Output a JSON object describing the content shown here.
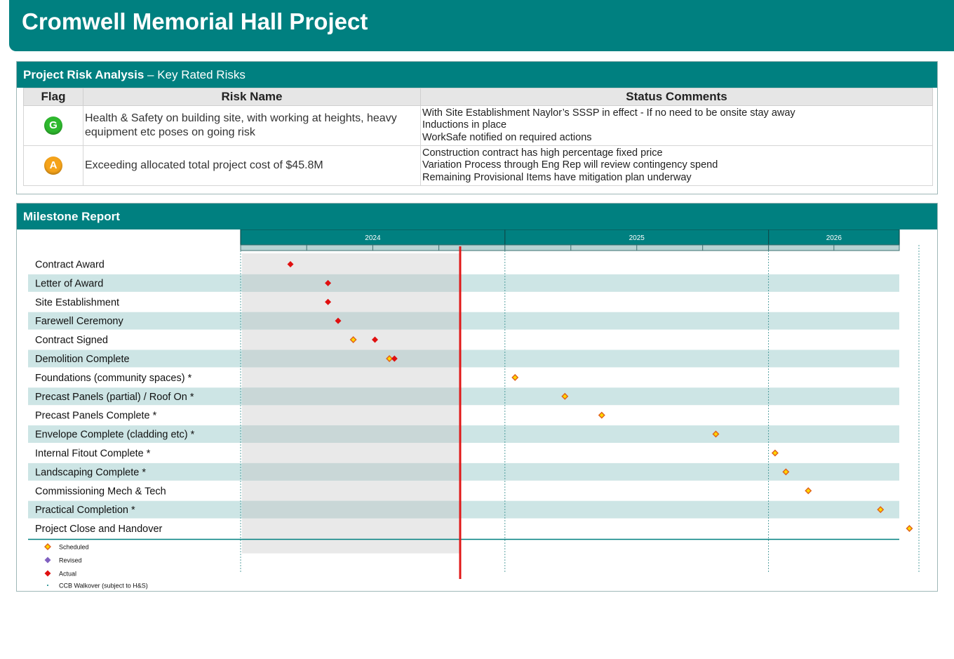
{
  "title": "Cromwell Memorial Hall Project",
  "risk_panel": {
    "title_bold": "Project Risk Analysis",
    "title_rest": " – Key Rated Risks",
    "headers": {
      "flag": "Flag",
      "risk_name": "Risk Name",
      "status": "Status Comments"
    },
    "rows": [
      {
        "flag": "G",
        "flag_color": "#2eb82e",
        "risk_name": "Health & Safety on building site, with working at heights, heavy equipment etc poses on going risk",
        "status": [
          "With Site Establishment Naylor’s SSSP in effect - If no need to be onsite stay away",
          "Inductions in place",
          "WorkSafe notified on required actions"
        ]
      },
      {
        "flag": "A",
        "flag_color": "#f5a31a",
        "risk_name": "Exceeding allocated total project cost of $45.8M",
        "status": [
          "Construction contract has high percentage fixed price",
          "Variation Process through Eng Rep will review contingency spend",
          "Remaining Provisional Items have mitigation plan underway"
        ]
      }
    ]
  },
  "milestone_panel": {
    "title": "Milestone Report"
  },
  "colors": {
    "teal": "#008080",
    "band": "#cde5e5",
    "scheduled": "#f0a020",
    "actual": "#e01010",
    "revised": "#8060c0",
    "today_line": "#e01818"
  },
  "chart_data": {
    "type": "gantt-milestones",
    "years": [
      "2024",
      "2025",
      "2026"
    ],
    "x_range": [
      "2024-01-01",
      "2026-07-01"
    ],
    "today": "2024-10-31",
    "milestones": [
      {
        "name": "Contract Award",
        "actual": "2024-03-10"
      },
      {
        "name": "Letter of Award",
        "actual": "2024-05-01"
      },
      {
        "name": "Site Establishment",
        "actual": "2024-05-01"
      },
      {
        "name": "Farewell Ceremony",
        "actual": "2024-05-15"
      },
      {
        "name": "Contract Signed",
        "scheduled": "2024-06-05",
        "actual": "2024-07-05"
      },
      {
        "name": "Demolition Complete",
        "scheduled": "2024-07-25",
        "actual": "2024-08-01"
      },
      {
        "name": "Foundations (community spaces) *",
        "scheduled": "2025-01-15"
      },
      {
        "name": "Precast Panels (partial) / Roof On *",
        "scheduled": "2025-03-25"
      },
      {
        "name": "Precast Panels Complete *",
        "scheduled": "2025-05-15"
      },
      {
        "name": "Envelope Complete (cladding etc) *",
        "scheduled": "2025-10-20"
      },
      {
        "name": "Internal Fitout Complete *",
        "scheduled": "2026-01-10"
      },
      {
        "name": "Landscaping Complete *",
        "scheduled": "2026-01-25"
      },
      {
        "name": "Commissioning Mech & Tech",
        "scheduled": "2026-02-25"
      },
      {
        "name": "Practical Completion *",
        "scheduled": "2026-06-05"
      },
      {
        "name": "Project Close and Handover",
        "scheduled": "2026-07-15"
      }
    ],
    "legend": [
      "Scheduled",
      "Revised",
      "Actual",
      "CCB Walkover (subject to H&S)"
    ]
  }
}
